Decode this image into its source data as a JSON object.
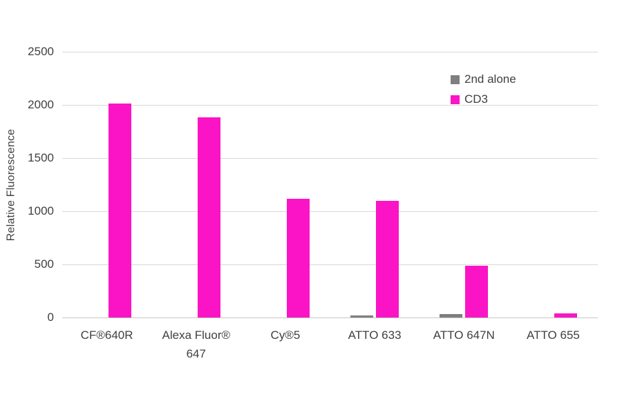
{
  "chart_data": {
    "type": "bar",
    "title": "",
    "ylabel": "Relative Fluorescence",
    "xlabel": "",
    "ylim": [
      0,
      2500
    ],
    "yticks": [
      0,
      500,
      1000,
      1500,
      2000,
      2500
    ],
    "grid": true,
    "legend_position": "top-right-inside",
    "categories": [
      "CF®640R",
      "Alexa Fluor® 647",
      "Cy®5",
      "ATTO 633",
      "ATTO 647N",
      "ATTO 655"
    ],
    "series": [
      {
        "name": "2nd alone",
        "color": "#7f7f7f",
        "values": [
          0,
          0,
          0,
          20,
          30,
          0
        ]
      },
      {
        "name": "CD3",
        "color": "#fb14c6",
        "values": [
          2010,
          1880,
          1120,
          1100,
          490,
          40
        ]
      }
    ],
    "colors": {
      "grid": "#d9d9d9",
      "axis": "#c6c6c6",
      "text": "#404040",
      "background": "#ffffff"
    }
  }
}
